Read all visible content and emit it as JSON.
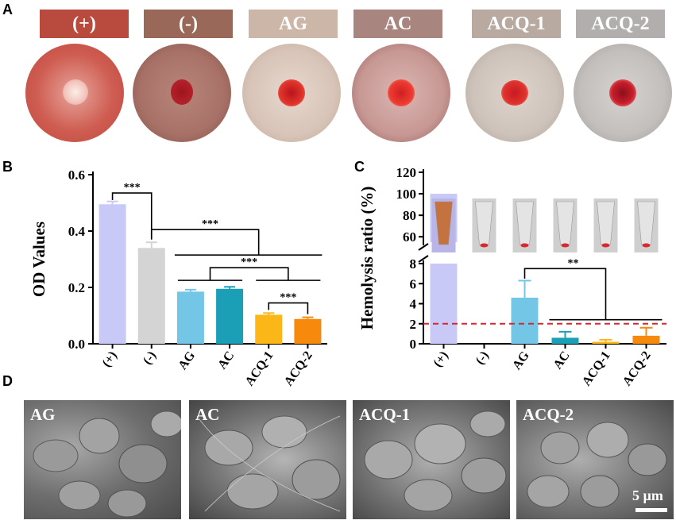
{
  "panels": {
    "a": "A",
    "b": "B",
    "c": "C",
    "d": "D"
  },
  "groups": [
    {
      "label": "(+)",
      "box_color": "#b94a3e"
    },
    {
      "label": "(-)",
      "box_color": "#9a6858"
    },
    {
      "label": "AG",
      "box_color": "#cbb6a8"
    },
    {
      "label": "AC",
      "box_color": "#a9857f"
    },
    {
      "label": "ACQ-1",
      "box_color": "#b8aaa0"
    },
    {
      "label": "ACQ-2",
      "box_color": "#b2aeae"
    }
  ],
  "chart_data": [
    {
      "type": "bar",
      "ylabel": "OD Values",
      "ylim": [
        0,
        0.6
      ],
      "yticks": [
        "0.0",
        "0.2",
        "0.4",
        "0.6"
      ],
      "categories": [
        "(+)",
        "(-)",
        "AG",
        "AC",
        "ACQ-1",
        "ACQ-2"
      ],
      "values": [
        0.495,
        0.34,
        0.185,
        0.195,
        0.103,
        0.088
      ],
      "errors": [
        0.01,
        0.02,
        0.007,
        0.007,
        0.006,
        0.006
      ],
      "colors": [
        "#c9c9f7",
        "#d4d4d4",
        "#74c6e6",
        "#1b9fb6",
        "#fbb618",
        "#f7890c"
      ],
      "significance": [
        "***",
        "***",
        "***",
        "***"
      ]
    },
    {
      "type": "bar",
      "ylabel": "Hemolysis ratio (%)",
      "ylim": [
        0,
        120
      ],
      "broken_axis": [
        8,
        55
      ],
      "yticks_lower": [
        "0",
        "2",
        "4",
        "6",
        "8"
      ],
      "yticks_upper": [
        "60",
        "80",
        "100",
        "120"
      ],
      "categories": [
        "(+)",
        "(-)",
        "AG",
        "AC",
        "ACQ-1",
        "ACQ-2"
      ],
      "values": [
        100,
        0,
        4.6,
        0.6,
        0.2,
        0.8
      ],
      "errors": [
        0,
        0,
        1.7,
        0.6,
        0.2,
        0.8
      ],
      "colors": [
        "#c9c9f7",
        "#d4d4d4",
        "#74c6e6",
        "#1b9fb6",
        "#fbb618",
        "#f7890c"
      ],
      "threshold": 2,
      "significance": [
        "**"
      ]
    }
  ],
  "sem": {
    "labels": [
      "AG",
      "AC",
      "ACQ-1",
      "ACQ-2"
    ],
    "scale": "5 µm"
  }
}
